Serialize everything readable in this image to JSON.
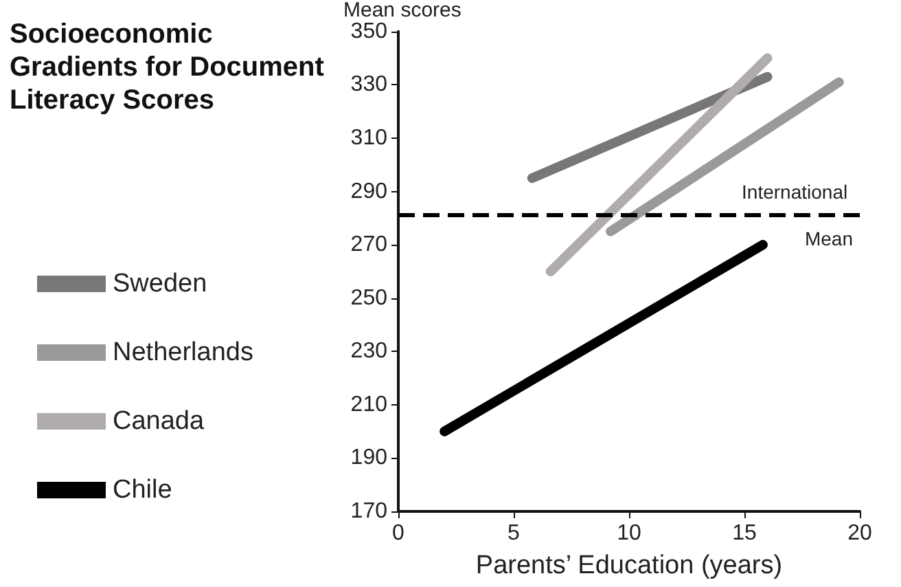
{
  "chart_data": {
    "type": "line",
    "title": "Socioeconomic Gradients for Document Literacy Scores",
    "xlabel": "Parents’ Education (years)",
    "ylabel": "Mean scores",
    "xlim": [
      0,
      20
    ],
    "xticks": [
      0,
      5,
      10,
      15,
      20
    ],
    "ylim": [
      170,
      350
    ],
    "yticks": [
      170,
      190,
      210,
      230,
      250,
      270,
      290,
      310,
      330,
      350
    ],
    "series": [
      {
        "name": "Sweden",
        "color": "#777777",
        "x": [
          5.8,
          16.0
        ],
        "values": [
          295,
          333
        ]
      },
      {
        "name": "Netherlands",
        "color": "#9a9a9a",
        "x": [
          9.2,
          19.1
        ],
        "values": [
          275,
          331
        ]
      },
      {
        "name": "Canada",
        "color": "#b0acac",
        "x": [
          6.6,
          16.0
        ],
        "values": [
          260,
          340
        ]
      },
      {
        "name": "Chile",
        "color": "#000000",
        "x": [
          2.0,
          15.8
        ],
        "values": [
          200,
          270
        ]
      }
    ],
    "ref_lines": [
      {
        "axis": "y",
        "value": 281,
        "label": "International Mean",
        "color": "#000000",
        "line_style": "dashed"
      }
    ],
    "legend": "left",
    "grid": false,
    "line_style": "solid"
  }
}
